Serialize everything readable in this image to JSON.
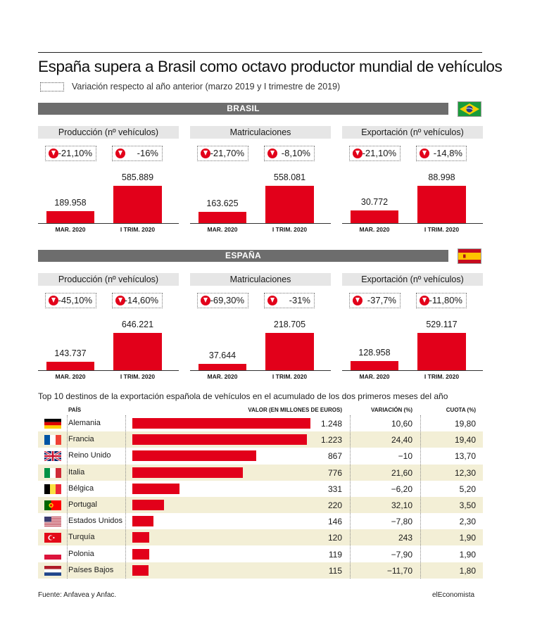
{
  "title": "España supera a Brasil como octavo productor mundial de vehículos",
  "legend_text": "Variación respecto al año anterior (marzo 2019 y I trimestre de 2019)",
  "colors": {
    "accent": "#e2001a",
    "header_bar": "#6d6d6d",
    "panel_head": "#e6e6e6",
    "row_shade": "#f3efd6"
  },
  "sections": [
    {
      "name": "BRASIL",
      "flag_icon": "brazil-flag-icon",
      "panels": [
        {
          "heading": "Producción (nº vehículos)",
          "var_left": "-21,10%",
          "var_right": "-16%",
          "chart_data": {
            "type": "bar",
            "categories": [
              "MAR. 2020",
              "I TRIM. 2020"
            ],
            "values": [
              189958,
              585889
            ],
            "value_labels": [
              "189.958",
              "585.889"
            ]
          }
        },
        {
          "heading": "Matriculaciones",
          "var_left": "-21,70%",
          "var_right": "-8,10%",
          "chart_data": {
            "type": "bar",
            "categories": [
              "MAR. 2020",
              "I TRIM. 2020"
            ],
            "values": [
              163625,
              558081
            ],
            "value_labels": [
              "163.625",
              "558.081"
            ]
          }
        },
        {
          "heading": "Exportación (nº vehículos)",
          "var_left": "-21,10%",
          "var_right": "-14,8%",
          "chart_data": {
            "type": "bar",
            "categories": [
              "MAR. 2020",
              "I TRIM. 2020"
            ],
            "values": [
              30772,
              88998
            ],
            "value_labels": [
              "30.772",
              "88.998"
            ]
          }
        }
      ]
    },
    {
      "name": "ESPAÑA",
      "flag_icon": "spain-flag-icon",
      "panels": [
        {
          "heading": "Producción (nº vehículos)",
          "var_left": "-45,10%",
          "var_right": "-14,60%",
          "chart_data": {
            "type": "bar",
            "categories": [
              "MAR. 2020",
              "I TRIM. 2020"
            ],
            "values": [
              143737,
              646221
            ],
            "value_labels": [
              "143.737",
              "646.221"
            ]
          }
        },
        {
          "heading": "Matriculaciones",
          "var_left": "-69,30%",
          "var_right": "-31%",
          "chart_data": {
            "type": "bar",
            "categories": [
              "MAR. 2020",
              "I TRIM. 2020"
            ],
            "values": [
              37644,
              218705
            ],
            "value_labels": [
              "37.644",
              "218.705"
            ]
          }
        },
        {
          "heading": "Exportación (nº vehículos)",
          "var_left": "-37,7%",
          "var_right": "-11,80%",
          "chart_data": {
            "type": "bar",
            "categories": [
              "MAR. 2020",
              "I TRIM. 2020"
            ],
            "values": [
              128958,
              529117
            ],
            "value_labels": [
              "128.958",
              "529.117"
            ]
          }
        }
      ]
    }
  ],
  "table": {
    "title": "Top 10 destinos de la exportación española de vehículos en el acumulado de los dos primeros meses del año",
    "headers": {
      "country": "PAÍS",
      "value": "VALOR (EN MILLONES DE EUROS)",
      "variation": "VARIACIÓN (%)",
      "share": "CUOTA (%)"
    },
    "rows": [
      {
        "flag": "germany-flag-icon",
        "country": "Alemania",
        "value_label": "1.248",
        "variation": "10,60",
        "share": "19,80"
      },
      {
        "flag": "france-flag-icon",
        "country": "Francia",
        "value_label": "1.223",
        "variation": "24,40",
        "share": "19,40"
      },
      {
        "flag": "uk-flag-icon",
        "country": "Reino Unido",
        "value_label": "867",
        "variation": "−10",
        "share": "13,70"
      },
      {
        "flag": "italy-flag-icon",
        "country": "Italia",
        "value_label": "776",
        "variation": "21,60",
        "share": "12,30"
      },
      {
        "flag": "belgium-flag-icon",
        "country": "Bélgica",
        "value_label": "331",
        "variation": "−6,20",
        "share": "5,20"
      },
      {
        "flag": "portugal-flag-icon",
        "country": "Portugal",
        "value_label": "220",
        "variation": "32,10",
        "share": "3,50"
      },
      {
        "flag": "usa-flag-icon",
        "country": "Estados Unidos",
        "value_label": "146",
        "variation": "−7,80",
        "share": "2,30"
      },
      {
        "flag": "turkey-flag-icon",
        "country": "Turquía",
        "value_label": "120",
        "variation": "243",
        "share": "1,90"
      },
      {
        "flag": "poland-flag-icon",
        "country": "Polonia",
        "value_label": "119",
        "variation": "−7,90",
        "share": "1,90"
      },
      {
        "flag": "netherlands-flag-icon",
        "country": "Países Bajos",
        "value_label": "115",
        "variation": "−11,70",
        "share": "1,80"
      }
    ],
    "chart_data": {
      "type": "bar",
      "categories": [
        "Alemania",
        "Francia",
        "Reino Unido",
        "Italia",
        "Bélgica",
        "Portugal",
        "Estados Unidos",
        "Turquía",
        "Polonia",
        "Países Bajos"
      ],
      "values": [
        1248,
        1223,
        867,
        776,
        331,
        220,
        146,
        120,
        119,
        115
      ]
    }
  },
  "footer": {
    "source": "Fuente: Anfavea y Anfac.",
    "brand": "elEconomista"
  }
}
